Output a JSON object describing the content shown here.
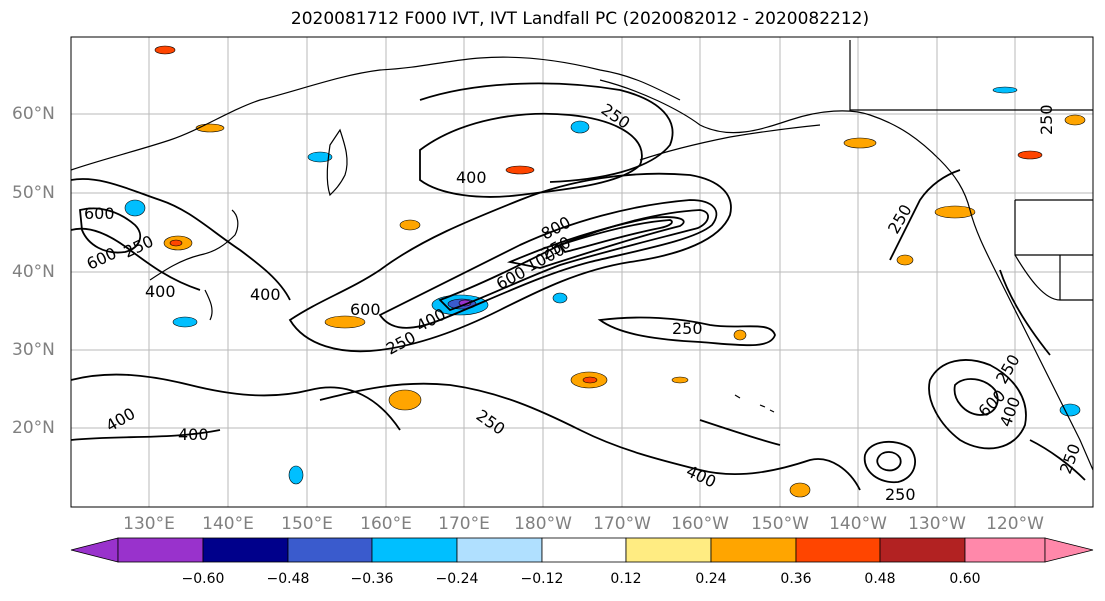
{
  "title": "2020081712 F000 IVT, IVT Landfall PC (2020082012 - 2020082212)",
  "lon_labels": [
    "130°E",
    "140°E",
    "150°E",
    "160°E",
    "170°E",
    "180°W",
    "170°W",
    "160°W",
    "150°W",
    "140°W",
    "130°W",
    "120°W"
  ],
  "lat_labels": [
    "60°N",
    "50°N",
    "40°N",
    "30°N",
    "20°N"
  ],
  "contour_labels": [
    "250",
    "400",
    "600",
    "800",
    "1000",
    "250",
    "400",
    "600",
    "400",
    "600",
    "600",
    "400",
    "250",
    "400",
    "400",
    "250",
    "400",
    "250",
    "250",
    "400",
    "250",
    "600",
    "250",
    "250",
    "250",
    "250"
  ],
  "colorbar": {
    "ticks": [
      "−0.60",
      "−0.48",
      "−0.36",
      "−0.24",
      "−0.12",
      "0.12",
      "0.24",
      "0.36",
      "0.48",
      "0.60"
    ],
    "colors": [
      "#9932cc",
      "#00008b",
      "#3a5bcd",
      "#00bfff",
      "#b0e0ff",
      "#ffffff",
      "#ffec82",
      "#ffa500",
      "#ff4500",
      "#b22222",
      "#ff88aa"
    ]
  },
  "map_colors": {
    "land": "#000000",
    "contour": "#000000",
    "grid": "#aaaaaa"
  }
}
